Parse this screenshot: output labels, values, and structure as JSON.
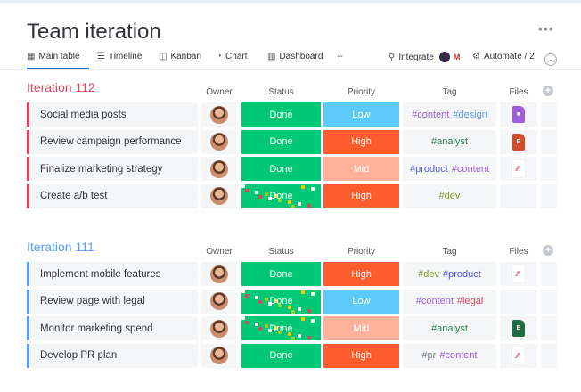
{
  "title": "Team iteration",
  "tabs": [
    {
      "label": "Main table",
      "icon": "table-icon"
    },
    {
      "label": "Timeline",
      "icon": "timeline-icon"
    },
    {
      "label": "Kanban",
      "icon": "kanban-icon"
    },
    {
      "label": "Chart",
      "icon": "chart-icon"
    },
    {
      "label": "Dashboard",
      "icon": "dashboard-icon"
    }
  ],
  "add_tab": "+",
  "integrate": "Integrate",
  "automate": "Automate / 2",
  "columns": {
    "owner": "Owner",
    "status": "Status",
    "priority": "Priority",
    "tag": "Tag",
    "files": "Files"
  },
  "colors": {
    "done": "#00c875",
    "high": "#fd5c2c",
    "mid": "#ffb29b",
    "low": "#5ccbfa",
    "group1": "#e2445c",
    "group2": "#579bfc"
  },
  "groups": [
    {
      "title": "Iteration 112",
      "color": "#e2445c",
      "rows": [
        {
          "name": "Social media posts",
          "status": "Done",
          "priority": "Low",
          "tags": [
            {
              "t": "#content",
              "c": "#a25ddc"
            },
            {
              "t": "#design",
              "c": "#579bfc"
            }
          ],
          "file": {
            "type": "video",
            "label": "",
            "color": "#a25ddc"
          }
        },
        {
          "name": "Review campaign performance",
          "status": "Done",
          "priority": "High",
          "tags": [
            {
              "t": "#analyst",
              "c": "#2e7d4f"
            }
          ],
          "file": {
            "type": "ppt",
            "label": "P",
            "color": "#d64b2a"
          }
        },
        {
          "name": "Finalize marketing strategy",
          "status": "Done",
          "priority": "Mid",
          "tags": [
            {
              "t": "#product",
              "c": "#5559df"
            },
            {
              "t": "#content",
              "c": "#a25ddc"
            }
          ],
          "file": {
            "type": "monday",
            "label": "",
            "color": ""
          }
        },
        {
          "name": "Create a/b test",
          "status": "Done",
          "priority": "High",
          "tags": [
            {
              "t": "#dev",
              "c": "#7e9b2b"
            }
          ],
          "file": null
        }
      ]
    },
    {
      "title": "Iteration 111",
      "color": "#579bfc",
      "rows": [
        {
          "name": "Implement mobile features",
          "status": "Done",
          "priority": "High",
          "tags": [
            {
              "t": "#dev",
              "c": "#7e9b2b"
            },
            {
              "t": "#product",
              "c": "#5559df"
            }
          ],
          "file": {
            "type": "monday",
            "label": "",
            "color": ""
          }
        },
        {
          "name": "Review page with legal",
          "status": "Done",
          "priority": "Low",
          "tags": [
            {
              "t": "#content",
              "c": "#a25ddc"
            },
            {
              "t": "#legal",
              "c": "#e2445c"
            }
          ],
          "file": null
        },
        {
          "name": "Monitor marketing spend",
          "status": "Done",
          "priority": "Mid",
          "tags": [
            {
              "t": "#analyst",
              "c": "#2e7d4f"
            }
          ],
          "file": {
            "type": "excel",
            "label": "E",
            "color": "#1d6b40"
          }
        },
        {
          "name": "Develop PR plan",
          "status": "Done",
          "priority": "High",
          "tags": [
            {
              "t": "#pr",
              "c": "#808080"
            },
            {
              "t": "#content",
              "c": "#a25ddc"
            }
          ],
          "file": {
            "type": "monday",
            "label": "",
            "color": ""
          }
        }
      ]
    }
  ]
}
